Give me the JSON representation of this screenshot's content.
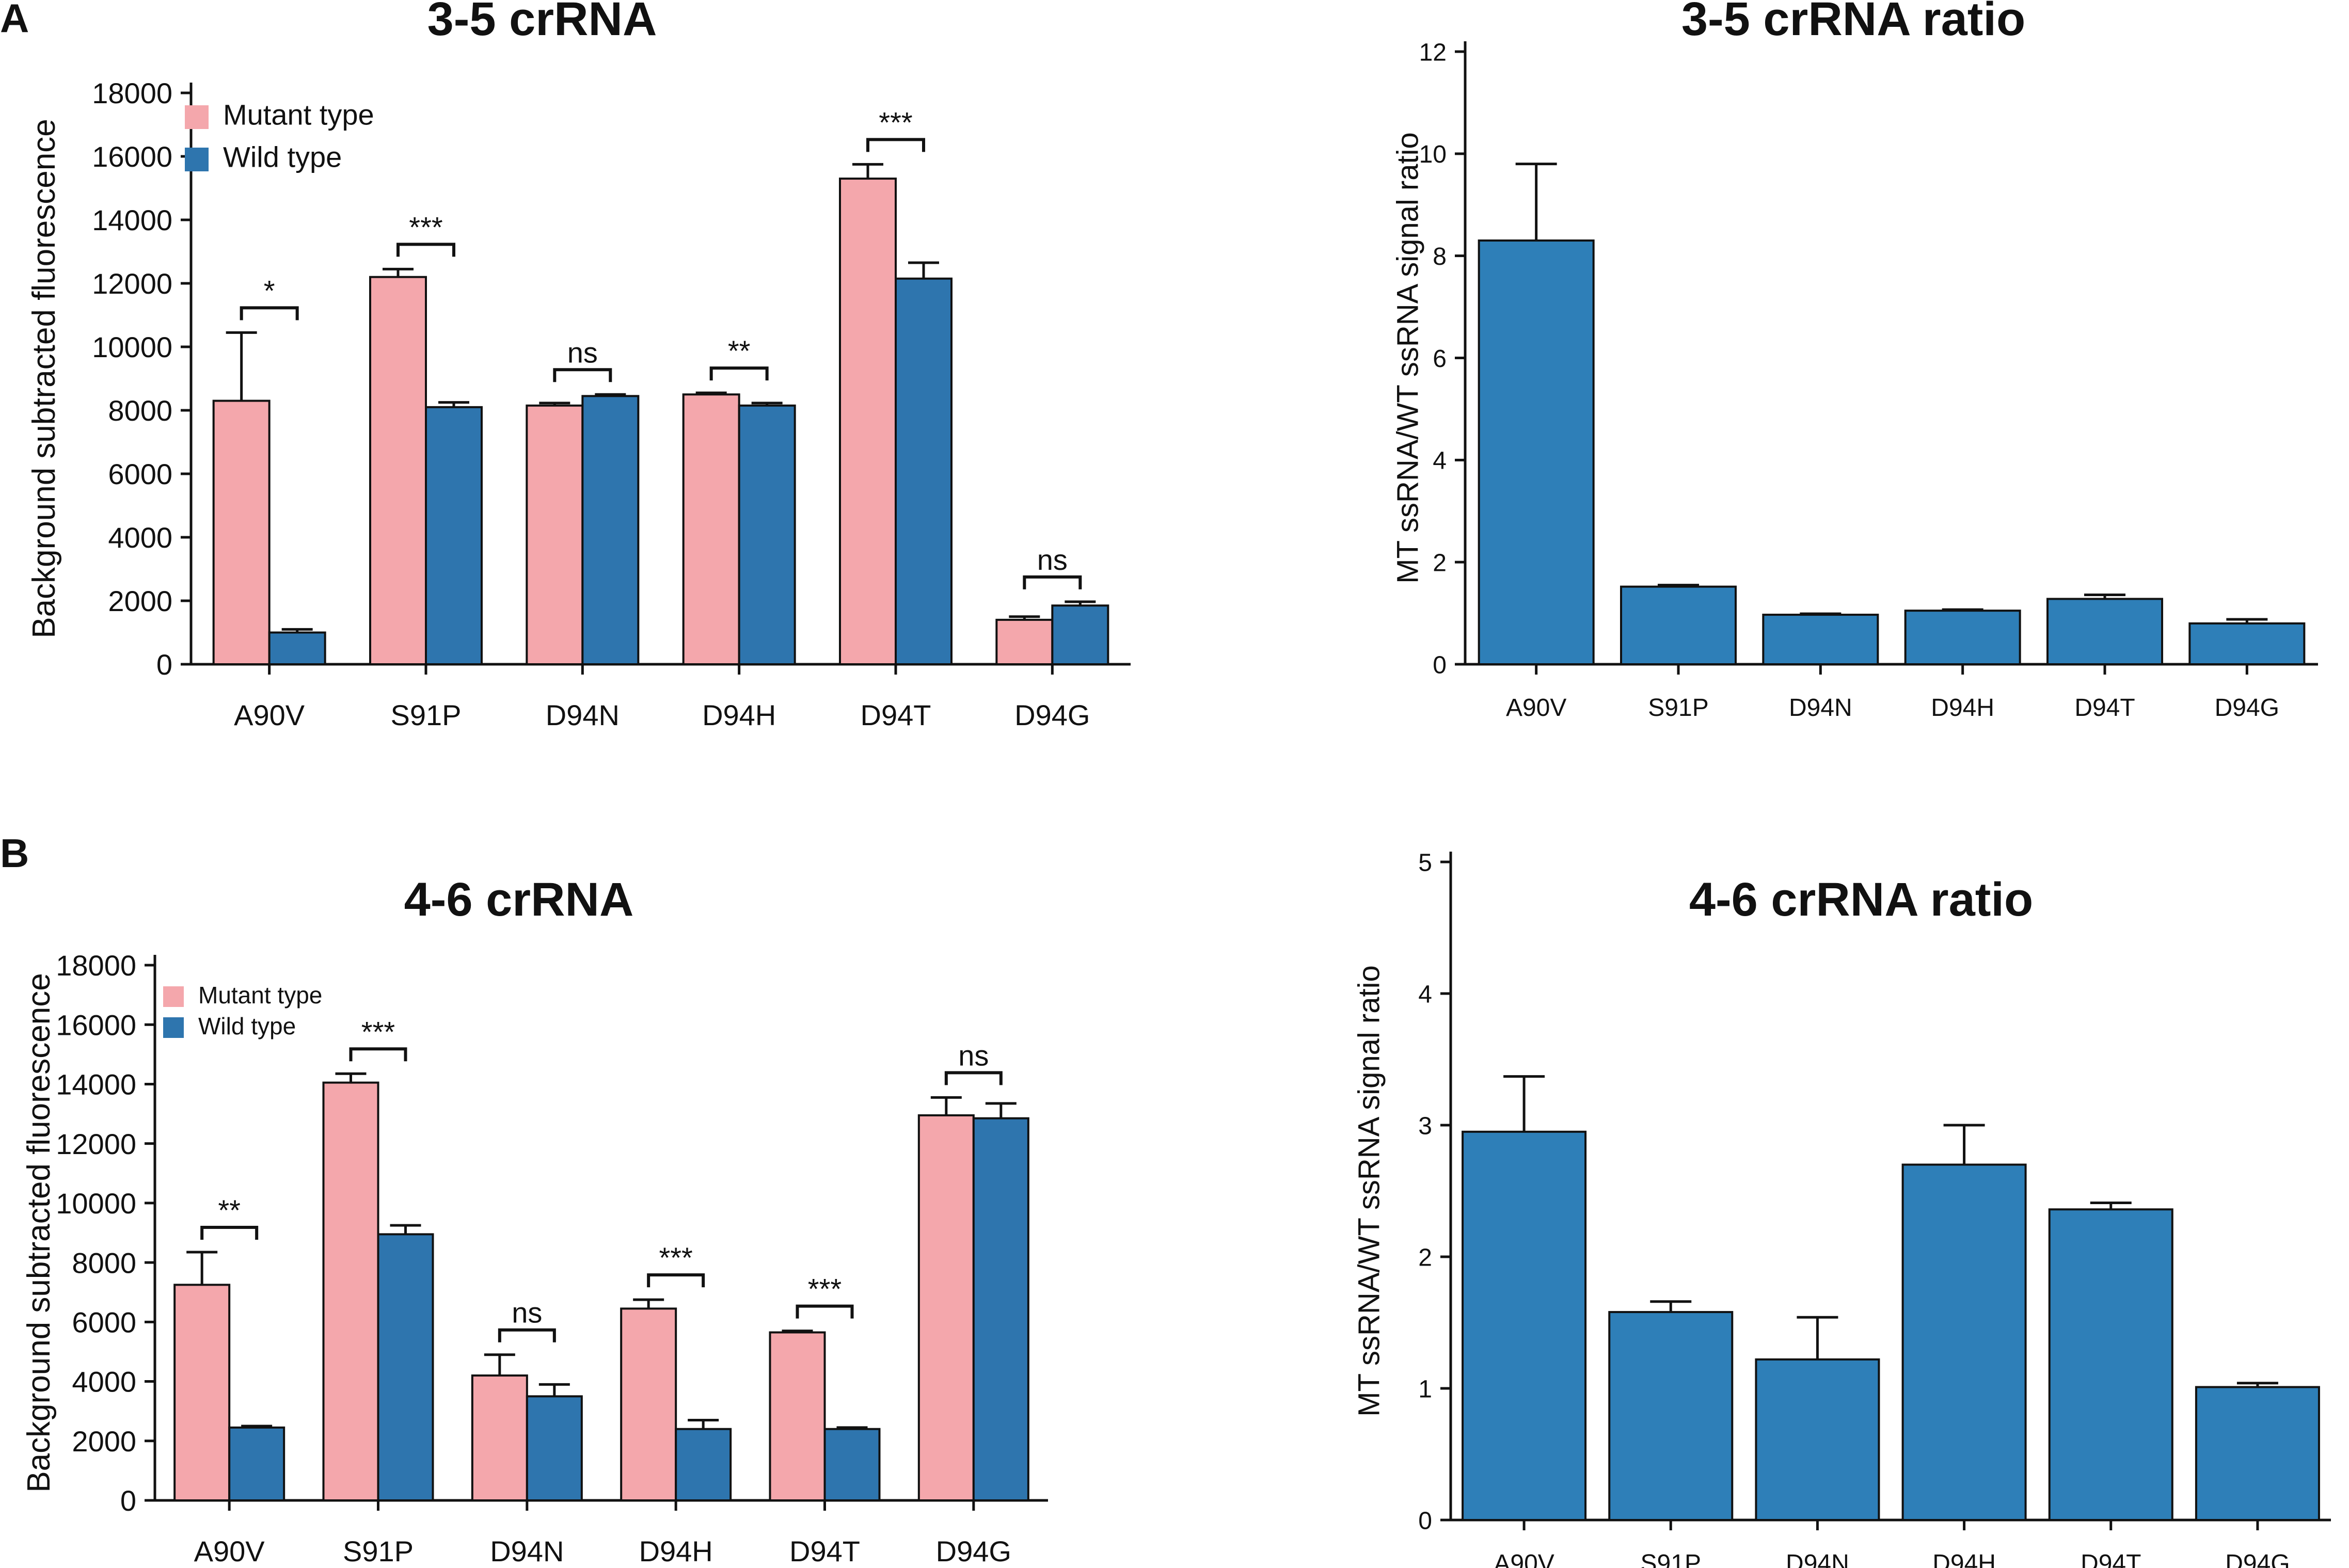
{
  "figure": {
    "panel_labels": [
      "A",
      "B"
    ],
    "colors": {
      "mutant": "#F4A7AC",
      "wild": "#2E75AE",
      "ratio": "#2E7FB8",
      "axis": "#111111"
    }
  },
  "chart_data": [
    {
      "id": "a1",
      "panel": "A",
      "type": "bar",
      "title": "3-5 crRNA",
      "xlabel": "",
      "ylabel": "Background subtracted fluorescence",
      "ylim": [
        0,
        18000
      ],
      "yticks": [
        0,
        2000,
        4000,
        6000,
        8000,
        10000,
        12000,
        14000,
        16000,
        18000
      ],
      "categories": [
        "A90V",
        "S91P",
        "D94N",
        "D94H",
        "D94T",
        "D94G"
      ],
      "legend_position": "top-left",
      "series": [
        {
          "name": "Mutant type",
          "color": "#F4A7AC",
          "values": [
            8300,
            12200,
            8150,
            8500,
            15300,
            1400
          ],
          "errors": [
            2150,
            250,
            80,
            50,
            450,
            100
          ]
        },
        {
          "name": "Wild type",
          "color": "#2E75AE",
          "values": [
            1000,
            8100,
            8450,
            8150,
            12150,
            1850
          ],
          "errors": [
            100,
            150,
            50,
            80,
            500,
            120
          ]
        }
      ],
      "significance": [
        "*",
        "***",
        "ns",
        "**",
        "***",
        "ns"
      ]
    },
    {
      "id": "a2",
      "panel": "A",
      "type": "bar",
      "title": "3-5 crRNA ratio",
      "xlabel": "",
      "ylabel": "MT ssRNA/WT ssRNA signal ratio",
      "ylim": [
        0,
        12
      ],
      "yticks": [
        0,
        2,
        4,
        6,
        8,
        10,
        12
      ],
      "categories": [
        "A90V",
        "S91P",
        "D94N",
        "D94H",
        "D94T",
        "D94G"
      ],
      "series": [
        {
          "name": "MT/WT ratio",
          "color": "#2E7FB8",
          "values": [
            8.3,
            1.52,
            0.97,
            1.05,
            1.28,
            0.8
          ],
          "errors": [
            1.5,
            0.03,
            0.02,
            0.02,
            0.08,
            0.08
          ]
        }
      ]
    },
    {
      "id": "b1",
      "panel": "B",
      "type": "bar",
      "title": "4-6 crRNA",
      "xlabel": "",
      "ylabel": "Background subtracted fluorescence",
      "ylim": [
        0,
        18000
      ],
      "yticks": [
        0,
        2000,
        4000,
        6000,
        8000,
        10000,
        12000,
        14000,
        16000,
        18000
      ],
      "categories": [
        "A90V",
        "S91P",
        "D94N",
        "D94H",
        "D94T",
        "D94G"
      ],
      "legend_position": "top-left",
      "series": [
        {
          "name": "Mutant type",
          "color": "#F4A7AC",
          "values": [
            7250,
            14050,
            4200,
            6450,
            5650,
            12950
          ],
          "errors": [
            1100,
            300,
            700,
            300,
            50,
            600
          ]
        },
        {
          "name": "Wild type",
          "color": "#2E75AE",
          "values": [
            2450,
            8950,
            3500,
            2400,
            2400,
            12850
          ],
          "errors": [
            50,
            300,
            400,
            300,
            50,
            500
          ]
        }
      ],
      "significance": [
        "**",
        "***",
        "ns",
        "***",
        "***",
        "ns"
      ]
    },
    {
      "id": "b2",
      "panel": "B",
      "type": "bar",
      "title": "4-6 crRNA ratio",
      "xlabel": "",
      "ylabel": "MT ssRNA/WT ssRNA signal ratio",
      "ylim": [
        0,
        5
      ],
      "yticks": [
        0,
        1,
        2,
        3,
        4,
        5
      ],
      "categories": [
        "A90V",
        "S91P",
        "D94N",
        "D94H",
        "D94T",
        "D94G"
      ],
      "series": [
        {
          "name": "MT/WT ratio",
          "color": "#2E7FB8",
          "values": [
            2.95,
            1.58,
            1.22,
            2.7,
            2.36,
            1.01
          ],
          "errors": [
            0.42,
            0.08,
            0.32,
            0.3,
            0.05,
            0.03
          ]
        }
      ]
    }
  ]
}
